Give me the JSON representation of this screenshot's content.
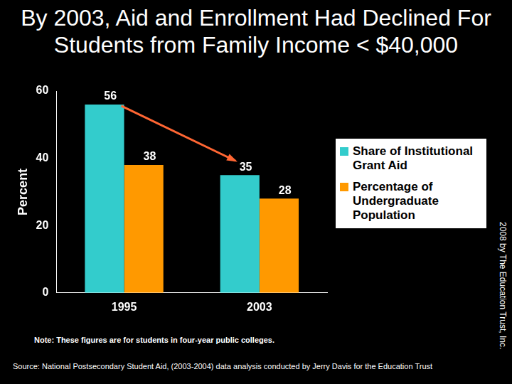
{
  "chart_data": {
    "type": "bar",
    "title": "By 2003, Aid and Enrollment Had Declined For Students from Family Income < $40,000",
    "y_label": "Percent",
    "categories": [
      "1995",
      "2003"
    ],
    "series": [
      {
        "name": "Share of Institutional Grant Aid",
        "color": "#33cccc",
        "values": [
          56,
          35
        ]
      },
      {
        "name": "Percentage of Undergraduate Population",
        "color": "#ff9900",
        "values": [
          38,
          28
        ]
      }
    ],
    "ylim": [
      0,
      60
    ],
    "yticks": [
      0,
      20,
      40,
      60
    ],
    "grid": false,
    "legend": "right",
    "data_labels": true,
    "note": "Note:  These figures are for students in four-year public colleges.",
    "source": "Source: National Postsecondary Student Aid, (2003-2004) data analysis conducted by Jerry Davis for the Education Trust",
    "copyright": "2008 by The Education Trust, Inc."
  }
}
